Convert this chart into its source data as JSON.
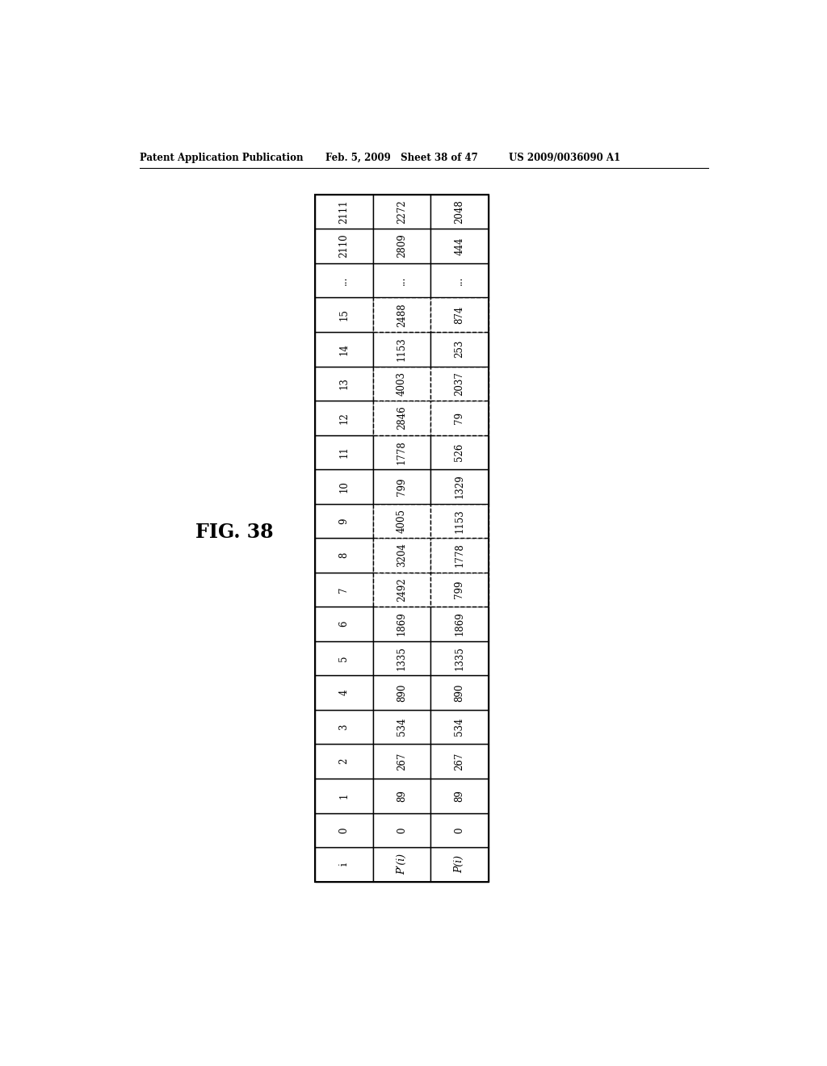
{
  "header_text_left": "Patent Application Publication",
  "header_text_center": "Feb. 5, 2009   Sheet 38 of 47",
  "header_text_right": "US 2009/0036090 A1",
  "fig_label": "FIG. 38",
  "table": {
    "row_labels": [
      "i",
      "P’(i)",
      "P(i)"
    ],
    "col_labels": [
      "0",
      "1",
      "2",
      "3",
      "4",
      "5",
      "6",
      "7",
      "8",
      "9",
      "10",
      "11",
      "12",
      "13",
      "14",
      "15",
      "...",
      "2110",
      "2111"
    ],
    "data": [
      [
        "0",
        "89",
        "267",
        "534",
        "890",
        "1335",
        "1869",
        "2492",
        "3204",
        "4005",
        "799",
        "1778",
        "2846",
        "4003",
        "1153",
        "2488",
        "...",
        "2809",
        "2272"
      ],
      [
        "0",
        "89",
        "267",
        "534",
        "890",
        "1335",
        "1869",
        "799",
        "1778",
        "1153",
        "1329",
        "526",
        "79",
        "2037",
        "253",
        "874",
        "...",
        "444",
        "2048"
      ]
    ],
    "dashed_cols": [
      7,
      8,
      9,
      12,
      13,
      15
    ]
  },
  "background_color": "#ffffff"
}
